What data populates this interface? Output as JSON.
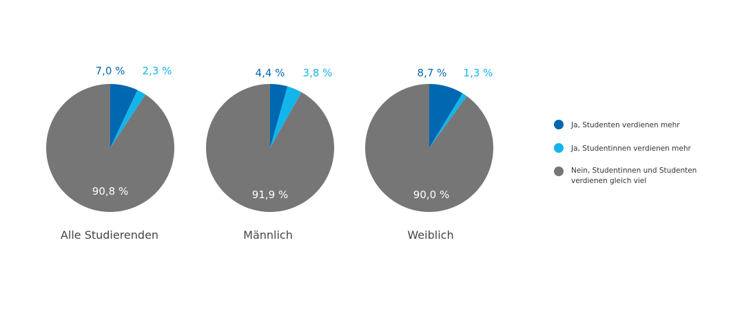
{
  "colors": {
    "ja_studenten": "#0067b1",
    "ja_studentinnen": "#13b5ea",
    "nein": "#767676"
  },
  "chart_data": {
    "type": "pie",
    "unit": "%",
    "series_names": [
      "Ja, Studenten verdienen mehr",
      "Ja, Studentinnen verdienen mehr",
      "Nein, Studentinnen und Studenten verdienen gleich viel"
    ],
    "pies": [
      {
        "title": "Alle Studierenden",
        "values": [
          7.0,
          2.3,
          90.8
        ],
        "labels": [
          "7,0 %",
          "2,3 %",
          "90,8 %"
        ]
      },
      {
        "title": "Männlich",
        "values": [
          4.4,
          3.8,
          91.9
        ],
        "labels": [
          "4,4 %",
          "3,8 %",
          "91,9 %"
        ]
      },
      {
        "title": "Weiblich",
        "values": [
          8.7,
          1.3,
          90.0
        ],
        "labels": [
          "8,7 %",
          "1,3 %",
          "90,0 %"
        ]
      }
    ]
  },
  "legend": {
    "items": [
      {
        "line1": "Ja, Studenten verdienen mehr",
        "line2": ""
      },
      {
        "line1": "Ja, Studentinnen verdienen mehr",
        "line2": ""
      },
      {
        "line1": "Nein, Studentinnen und Studenten",
        "line2": "verdienen gleich viel"
      }
    ]
  }
}
